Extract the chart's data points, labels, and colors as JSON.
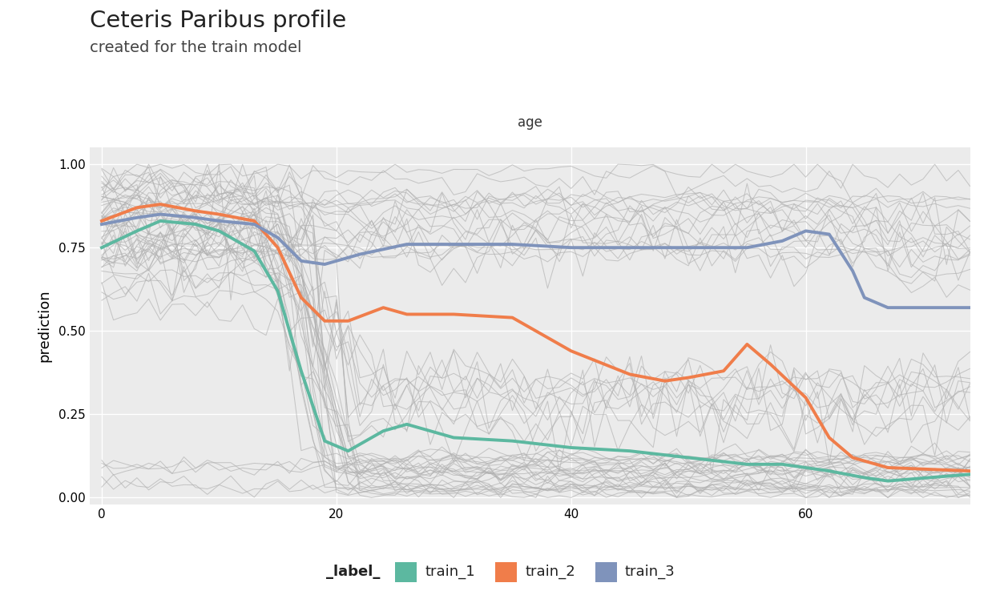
{
  "title": "Ceteris Paribus profile",
  "subtitle": "created for the train model",
  "xlabel": "age",
  "ylabel": "prediction",
  "xlim": [
    -1,
    74
  ],
  "ylim": [
    -0.02,
    1.05
  ],
  "xticks": [
    0,
    20,
    40,
    60
  ],
  "yticks": [
    0.0,
    0.25,
    0.5,
    0.75,
    1.0
  ],
  "bg_color": "#ebebeb",
  "grid_color": "#ffffff",
  "gray_color": "#b0b0b0",
  "train1_color": "#5cb8a0",
  "train2_color": "#f07d4a",
  "train3_color": "#7f93bb",
  "seed": 42
}
